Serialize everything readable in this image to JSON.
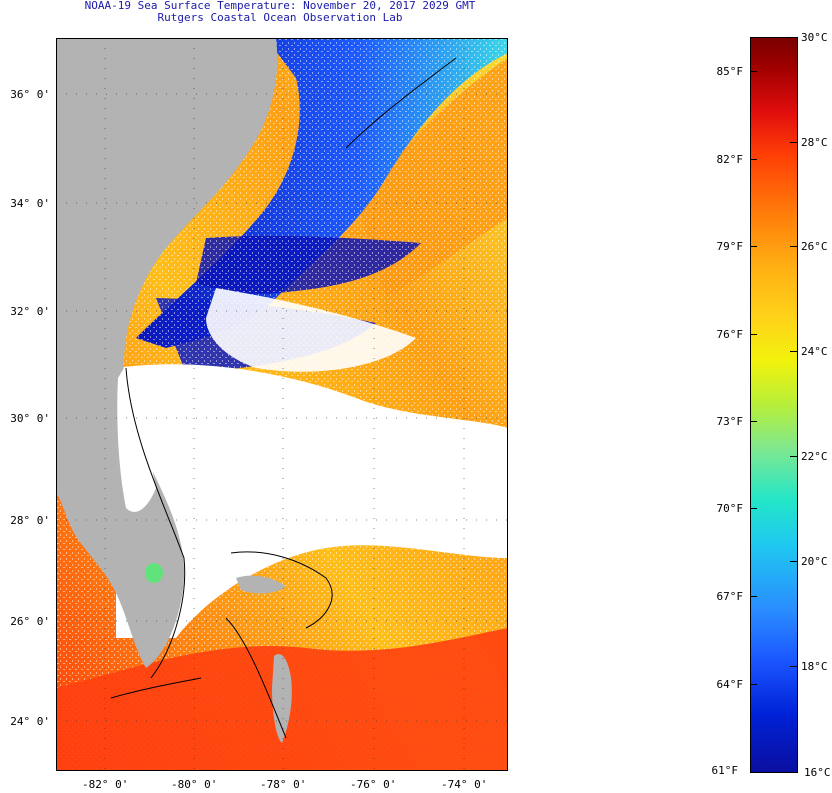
{
  "header": {
    "title": "NOAA-19 Sea Surface Temperature:  November 20, 2017 2029 GMT",
    "subtitle": "Rutgers Coastal Ocean Observation Lab"
  },
  "map": {
    "latitude_labels": [
      "36° 0'",
      "34° 0'",
      "32° 0'",
      "30° 0'",
      "28° 0'",
      "26° 0'",
      "24° 0'"
    ],
    "longitude_labels": [
      "-82° 0'",
      "-80° 0'",
      "-78° 0'",
      "-76° 0'",
      "-74° 0'"
    ],
    "colors": {
      "land": "#b3b3b3",
      "cloud": "#ffffff",
      "cold": "#0a1ec8",
      "warm": "#ff9a12",
      "hot": "#ff3a08"
    }
  },
  "legend": {
    "fahrenheit_labels": [
      "85°F",
      "82°F",
      "79°F",
      "76°F",
      "73°F",
      "70°F",
      "67°F",
      "64°F",
      "61°F"
    ],
    "celsius_labels": [
      "30°C",
      "28°C",
      "26°C",
      "24°C",
      "22°C",
      "20°C",
      "18°C",
      "16°C"
    ],
    "range_fahrenheit": [
      61,
      86
    ],
    "range_celsius": [
      16,
      30
    ]
  }
}
